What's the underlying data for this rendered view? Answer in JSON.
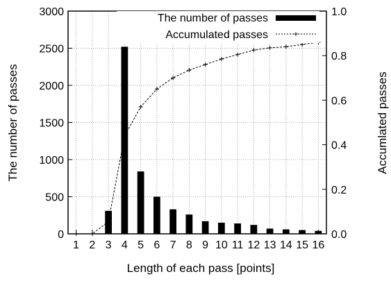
{
  "chart_data": {
    "type": "bar",
    "xlabel": "Length of each pass [points]",
    "ylabel_left": "The number of passes",
    "ylabel_right": "Accumlated passes",
    "categories": [
      "1",
      "2",
      "3",
      "4",
      "5",
      "6",
      "7",
      "8",
      "9",
      "10",
      "11",
      "12",
      "13",
      "14",
      "15",
      "16"
    ],
    "y_left_ticks": [
      "0",
      "500",
      "1000",
      "1500",
      "2000",
      "2500",
      "3000"
    ],
    "y_right_ticks": [
      "0.0",
      "0.2",
      "0.4",
      "0.6",
      "0.8",
      "1.0"
    ],
    "ylim_left": [
      0,
      3000
    ],
    "ylim_right": [
      0,
      1.0
    ],
    "grid": true,
    "legend_position": "top-right",
    "series": [
      {
        "name": "The number of passes",
        "kind": "bar",
        "axis": "left",
        "color": "#000000",
        "values": [
          0,
          0,
          310,
          2520,
          840,
          500,
          330,
          260,
          170,
          150,
          140,
          120,
          70,
          60,
          50,
          40
        ]
      },
      {
        "name": "Accumulated passes",
        "kind": "line",
        "axis": "right",
        "color": "#000000",
        "values": [
          0.0,
          0.0,
          0.055,
          0.44,
          0.57,
          0.65,
          0.7,
          0.735,
          0.76,
          0.785,
          0.805,
          0.825,
          0.835,
          0.84,
          0.85,
          0.86
        ]
      }
    ]
  }
}
